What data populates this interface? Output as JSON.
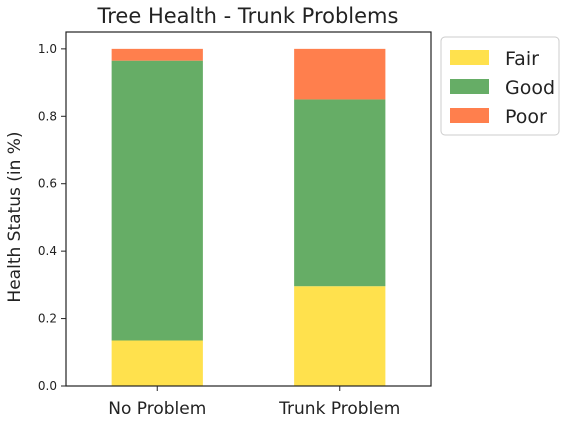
{
  "chart_data": {
    "type": "bar",
    "stacked": true,
    "title": "Tree Health - Trunk Problems",
    "xlabel": "",
    "ylabel": "Health Status (in %)",
    "categories": [
      "No Problem",
      "Trunk Problem"
    ],
    "series": [
      {
        "name": "Fair",
        "color": "#FFE14D",
        "values": [
          0.135,
          0.296
        ]
      },
      {
        "name": "Good",
        "color": "#66AD66",
        "values": [
          0.83,
          0.554
        ]
      },
      {
        "name": "Poor",
        "color": "#FF7F4D",
        "values": [
          0.035,
          0.15
        ]
      }
    ],
    "ylim": [
      0,
      1.05
    ],
    "yticks": [
      "0.0",
      "0.2",
      "0.4",
      "0.6",
      "0.8",
      "1.0"
    ],
    "grid": false,
    "legend_position": "outside-right-top"
  }
}
